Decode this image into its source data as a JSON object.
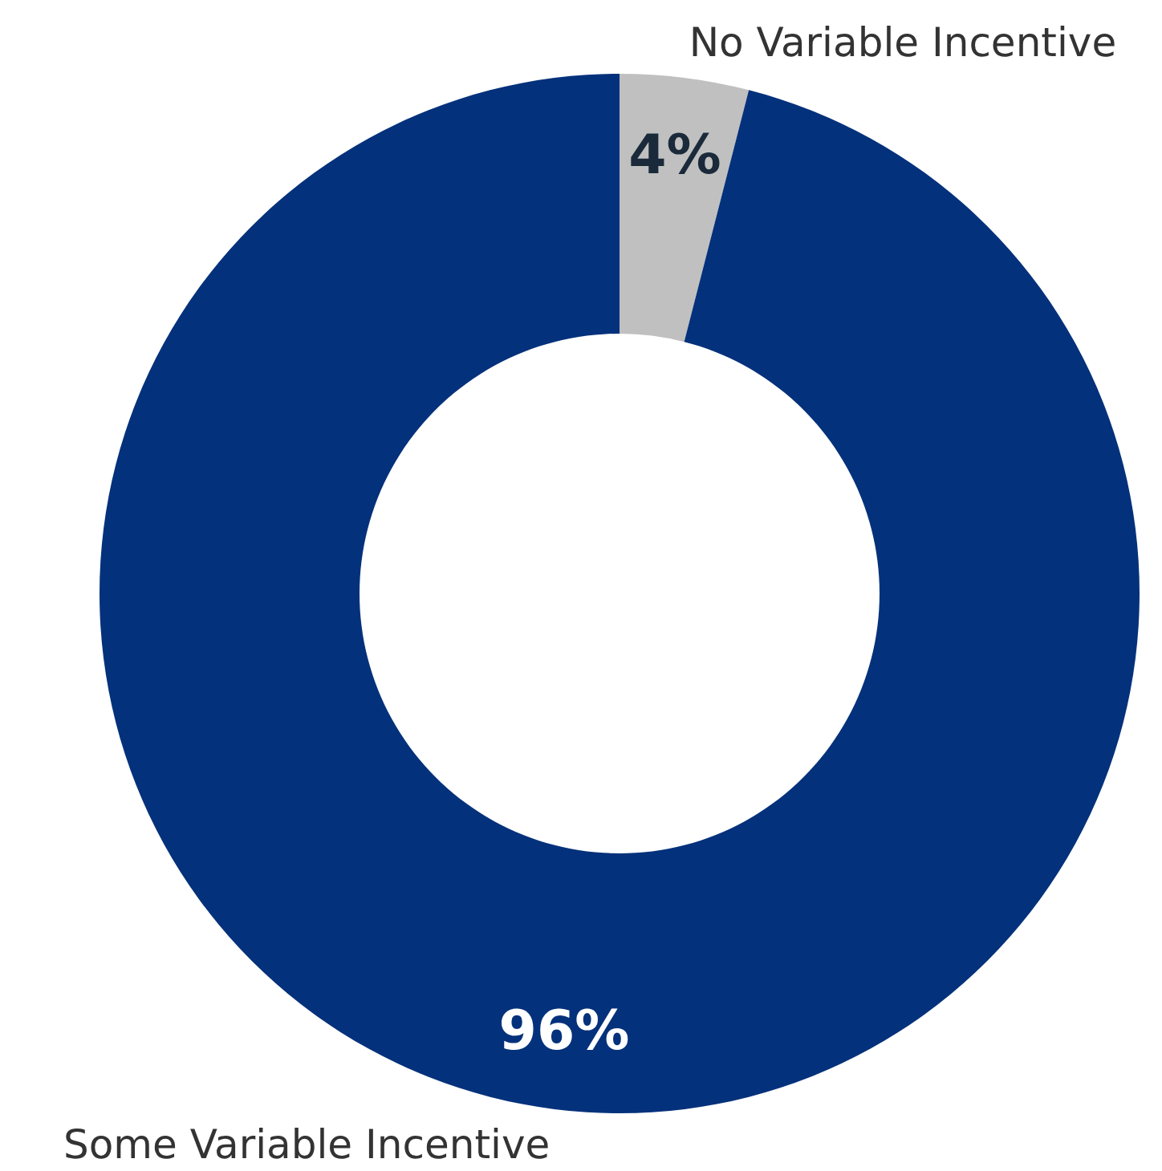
{
  "chart_data": {
    "type": "donut",
    "categories": [
      "No Variable Incentive",
      "Some Variable Incentive"
    ],
    "values": [
      4,
      96
    ],
    "colors": [
      "#c0c0c0",
      "#04317b"
    ],
    "value_labels": [
      "4%",
      "96%"
    ]
  }
}
